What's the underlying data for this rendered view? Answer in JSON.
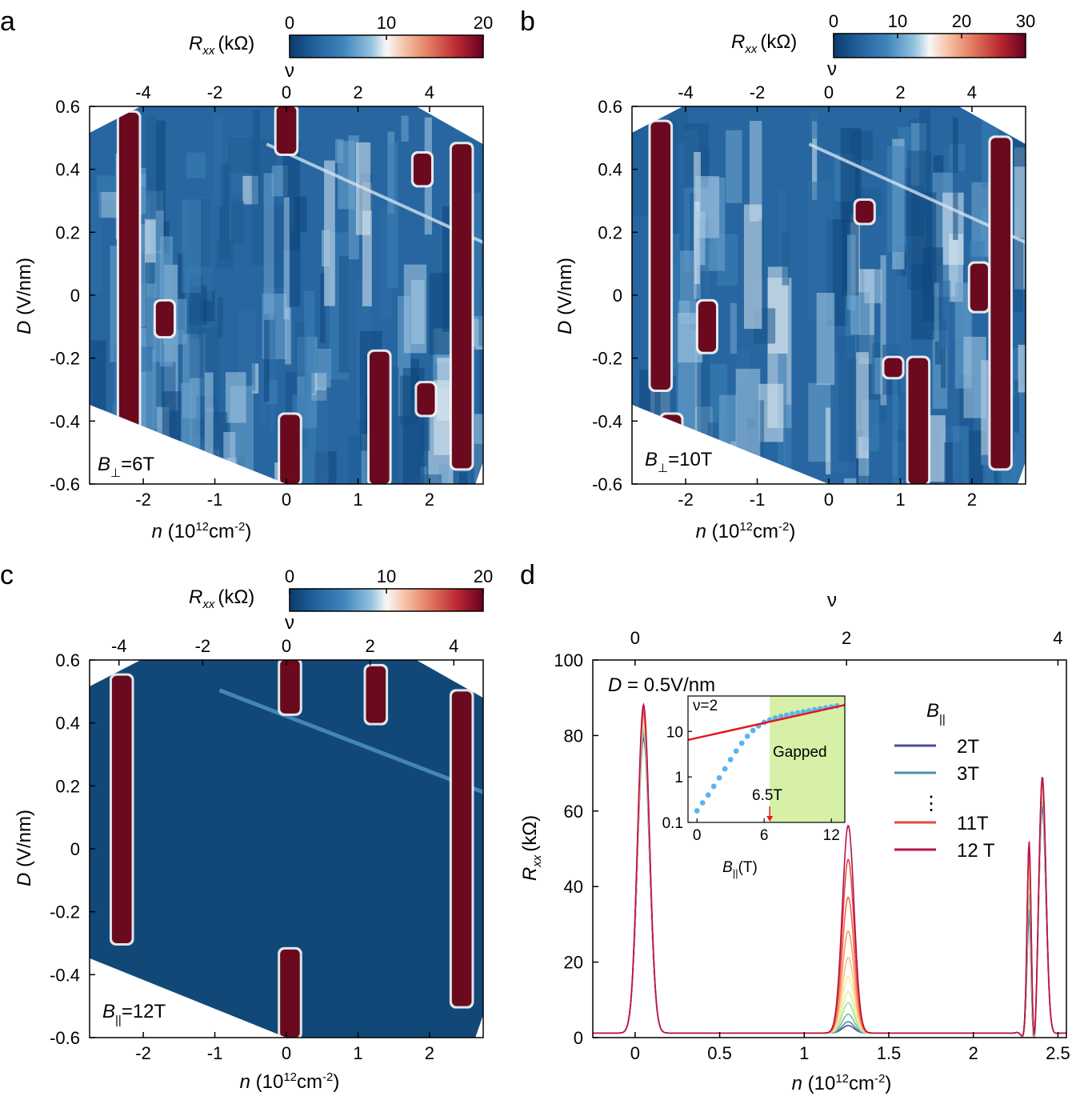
{
  "figure": {
    "panel_labels": [
      "a",
      "b",
      "c",
      "d"
    ]
  },
  "chart_data": [
    {
      "panel": "a",
      "type": "heatmap",
      "title": "",
      "xlabel": "n",
      "xlabel_unit": "(10",
      "xlabel_sup1": "12",
      "xlabel_unit2": "cm",
      "xlabel_sup2": "-2",
      "xlabel_end": ")",
      "ylabel": "D",
      "ylabel_unit": "(V/nm)",
      "xlim": [
        -2.75,
        2.75
      ],
      "ylim": [
        -0.6,
        0.6
      ],
      "xticks": [
        -2,
        -1,
        0,
        1,
        2
      ],
      "xtick_labels": [
        "-2",
        "-1",
        "0",
        "1",
        "2"
      ],
      "yticks": [
        0.6,
        0.4,
        0.2,
        0,
        -0.2,
        -0.4,
        -0.6
      ],
      "ytick_labels": [
        "0.6",
        "0.4",
        "0.2",
        "0",
        "-0.2",
        "-0.4",
        "-0.6"
      ],
      "top_axis_label": "ν",
      "top_ticks": [
        -4,
        -2,
        0,
        2,
        4
      ],
      "top_tick_labels": [
        "-4",
        "-2",
        "0",
        "2",
        "4"
      ],
      "nu_per_n": 2.0,
      "colorbar": {
        "label": "R",
        "label_sub": "xx",
        "unit": "(kΩ)",
        "min": 0,
        "max": 20,
        "ticks": [
          0,
          10,
          20
        ],
        "tick_labels": [
          "0",
          "10",
          "20"
        ]
      },
      "annotation": {
        "text_main": "B",
        "text_sub": "⊥",
        "text_value": "=6T"
      },
      "features": [
        {
          "kind": "resistive-stripe",
          "n": -2.2,
          "D_range": [
            -0.45,
            0.58
          ]
        },
        {
          "kind": "resistive-stripe",
          "n": 0.0,
          "D_range": [
            0.45,
            0.6
          ]
        },
        {
          "kind": "resistive-stripe",
          "n": 0.05,
          "D_range": [
            -0.6,
            -0.38
          ]
        },
        {
          "kind": "resistive-stripe",
          "n": 1.3,
          "D_range": [
            -0.6,
            -0.18
          ]
        },
        {
          "kind": "resistive-stripe",
          "n": 2.45,
          "D_range": [
            -0.55,
            0.48
          ]
        },
        {
          "kind": "resistive-spot",
          "n": -1.7,
          "D_range": [
            -0.13,
            -0.02
          ]
        },
        {
          "kind": "resistive-spot",
          "n": 1.9,
          "D_range": [
            0.35,
            0.45
          ]
        },
        {
          "kind": "resistive-spot",
          "n": 1.95,
          "D_range": [
            -0.38,
            -0.28
          ]
        }
      ]
    },
    {
      "panel": "b",
      "type": "heatmap",
      "title": "",
      "xlabel": "n",
      "xlabel_unit": "(10",
      "xlabel_sup1": "12",
      "xlabel_unit2": "cm",
      "xlabel_sup2": "-2",
      "xlabel_end": ")",
      "ylabel": "D",
      "ylabel_unit": "(V/nm)",
      "xlim": [
        -2.75,
        2.75
      ],
      "ylim": [
        -0.6,
        0.6
      ],
      "xticks": [
        -2,
        -1,
        0,
        1,
        2
      ],
      "xtick_labels": [
        "-2",
        "-1",
        "0",
        "1",
        "2"
      ],
      "yticks": [
        0.6,
        0.4,
        0.2,
        0,
        -0.2,
        -0.4,
        -0.6
      ],
      "ytick_labels": [
        "0.6",
        "0.4",
        "0.2",
        "0",
        "-0.2",
        "-0.4",
        "-0.6"
      ],
      "top_axis_label": "ν",
      "top_ticks": [
        -4,
        -2,
        0,
        2,
        4
      ],
      "top_tick_labels": [
        "-4",
        "-2",
        "0",
        "2",
        "4"
      ],
      "nu_per_n": 2.0,
      "colorbar": {
        "label": "R",
        "label_sub": "xx",
        "unit": "(kΩ)",
        "min": 0,
        "max": 30,
        "ticks": [
          0,
          10,
          20,
          30
        ],
        "tick_labels": [
          "0",
          "10",
          "20",
          "30"
        ]
      },
      "annotation": {
        "text_main": "B",
        "text_sub": "⊥",
        "text_value": "=10T"
      },
      "features": [
        {
          "kind": "resistive-stripe",
          "n": -2.35,
          "D_range": [
            -0.3,
            0.55
          ]
        },
        {
          "kind": "resistive-stripe",
          "n": -2.2,
          "D_range": [
            -0.55,
            -0.38
          ]
        },
        {
          "kind": "resistive-stripe",
          "n": 1.25,
          "D_range": [
            -0.6,
            -0.2
          ]
        },
        {
          "kind": "resistive-stripe",
          "n": 2.4,
          "D_range": [
            -0.55,
            0.5
          ]
        },
        {
          "kind": "resistive-spot",
          "n": -1.7,
          "D_range": [
            -0.18,
            -0.02
          ]
        },
        {
          "kind": "resistive-spot",
          "n": 0.5,
          "D_range": [
            0.23,
            0.3
          ]
        },
        {
          "kind": "resistive-spot",
          "n": 2.1,
          "D_range": [
            -0.05,
            0.1
          ]
        },
        {
          "kind": "resistive-spot",
          "n": 0.9,
          "D_range": [
            -0.26,
            -0.2
          ]
        }
      ]
    },
    {
      "panel": "c",
      "type": "heatmap",
      "title": "",
      "xlabel": "n",
      "xlabel_unit": "(10",
      "xlabel_sup1": "12",
      "xlabel_unit2": "cm",
      "xlabel_sup2": "-2",
      "xlabel_end": ")",
      "ylabel": "D",
      "ylabel_unit": "(V/nm)",
      "xlim": [
        -2.75,
        2.75
      ],
      "ylim": [
        -0.6,
        0.6
      ],
      "xticks": [
        -2,
        -1,
        0,
        1,
        2
      ],
      "xtick_labels": [
        "-2",
        "-1",
        "0",
        "1",
        "2"
      ],
      "yticks": [
        0.6,
        0.4,
        0.2,
        0,
        -0.2,
        -0.4,
        -0.6
      ],
      "ytick_labels": [
        "0.6",
        "0.4",
        "0.2",
        "0",
        "-0.2",
        "-0.4",
        "-0.6"
      ],
      "top_axis_label": "ν",
      "top_ticks": [
        -4,
        -2,
        0,
        2,
        4
      ],
      "top_tick_labels": [
        "-4",
        "-2",
        "0",
        "2",
        "4"
      ],
      "nu_per_n": 1.71,
      "colorbar": {
        "label": "R",
        "label_sub": "xx",
        "unit": "(kΩ)",
        "min": 0,
        "max": 20,
        "ticks": [
          0,
          10,
          20
        ],
        "tick_labels": [
          "0",
          "10",
          "20"
        ]
      },
      "annotation": {
        "text_main": "B",
        "text_sub": "||",
        "text_value": "=12T"
      },
      "features": [
        {
          "kind": "resistive-stripe",
          "n": -2.3,
          "D_range": [
            -0.3,
            0.55
          ]
        },
        {
          "kind": "resistive-stripe",
          "n": 0.05,
          "D_range": [
            0.43,
            0.6
          ]
        },
        {
          "kind": "resistive-stripe",
          "n": 0.05,
          "D_range": [
            -0.6,
            -0.32
          ]
        },
        {
          "kind": "resistive-stripe",
          "n": 1.25,
          "D_range": [
            0.4,
            0.58
          ]
        },
        {
          "kind": "resistive-stripe",
          "n": 2.45,
          "D_range": [
            -0.5,
            0.5
          ]
        }
      ]
    },
    {
      "panel": "d",
      "type": "line",
      "title": "",
      "xlabel": "n",
      "xlabel_unit": "(10",
      "xlabel_sup1": "12",
      "xlabel_unit2": "cm",
      "xlabel_sup2": "-2",
      "xlabel_end": ")",
      "ylabel": "R",
      "ylabel_sub": "xx",
      "ylabel_unit": "(kΩ)",
      "xlim": [
        -0.25,
        2.55
      ],
      "ylim": [
        0,
        100
      ],
      "xticks": [
        0,
        0.5,
        1,
        1.5,
        2,
        2.5
      ],
      "xtick_labels": [
        "0",
        "0.5",
        "1",
        "1.5",
        "2",
        "2.5"
      ],
      "yticks": [
        0,
        20,
        40,
        60,
        80,
        100
      ],
      "ytick_labels": [
        "0",
        "20",
        "40",
        "60",
        "80",
        "100"
      ],
      "top_axis_label": "ν",
      "top_ticks": [
        0,
        2,
        4
      ],
      "top_tick_labels": [
        "0",
        "2",
        "4"
      ],
      "nu_per_n": 1.6,
      "annotation": {
        "text_main": "D",
        "text_value": " = 0.5V/nm"
      },
      "legend": {
        "title": "B",
        "title_sub": "||",
        "ellipsis": "⋮"
      },
      "peaks": {
        "centers": [
          0.05,
          1.26,
          2.33,
          2.41
        ],
        "widths": [
          0.035,
          0.035,
          0.012,
          0.02
        ]
      },
      "series": [
        {
          "name": "2T",
          "B": 2,
          "color": "#4a4aa8",
          "in_legend": true,
          "peak_values": [
            78,
            2,
            28,
            60
          ]
        },
        {
          "name": "3T",
          "B": 3,
          "color": "#4a90a8",
          "in_legend": true,
          "peak_values": [
            79,
            3,
            30,
            62
          ]
        },
        {
          "name": "4T",
          "B": 4,
          "color": "#6cc0a0",
          "in_legend": false,
          "peak_values": [
            80,
            5,
            34,
            63
          ]
        },
        {
          "name": "5T",
          "B": 5,
          "color": "#a8dca0",
          "in_legend": false,
          "peak_values": [
            81,
            8,
            38,
            64
          ]
        },
        {
          "name": "6T",
          "B": 6,
          "color": "#dff0a0",
          "in_legend": false,
          "peak_values": [
            82,
            11,
            40,
            65
          ]
        },
        {
          "name": "7T",
          "B": 7,
          "color": "#fbe89a",
          "in_legend": false,
          "peak_values": [
            82,
            15,
            42,
            66
          ]
        },
        {
          "name": "8T",
          "B": 8,
          "color": "#fdc07a",
          "in_legend": false,
          "peak_values": [
            83,
            20,
            44,
            66
          ]
        },
        {
          "name": "9T",
          "B": 9,
          "color": "#f89866",
          "in_legend": false,
          "peak_values": [
            84,
            27,
            45,
            67
          ]
        },
        {
          "name": "10T",
          "B": 10,
          "color": "#ee6a50",
          "in_legend": false,
          "peak_values": [
            85,
            36,
            46,
            67
          ]
        },
        {
          "name": "11T",
          "B": 11,
          "color": "#e24a3a",
          "in_legend": true,
          "peak_values": [
            86,
            46,
            47,
            68
          ]
        },
        {
          "name": "12 T",
          "B": 12,
          "color": "#b8124a",
          "in_legend": true,
          "peak_values": [
            87,
            55,
            48,
            68
          ]
        }
      ],
      "inset": {
        "type": "scatter",
        "xlabel": "B",
        "xlabel_sub": "||",
        "xlabel_unit": "(T)",
        "label": "ν=2",
        "xlim": [
          -0.8,
          13.2
        ],
        "ylim_log": [
          0.1,
          60
        ],
        "xticks": [
          0,
          6,
          12
        ],
        "xtick_labels": [
          "0",
          "6",
          "12"
        ],
        "yticks": [
          0.1,
          1,
          10
        ],
        "ytick_labels": [
          "0.1",
          "1",
          "10"
        ],
        "shaded_region": {
          "x_from": 6.5,
          "x_to": 13.2,
          "color": "#d6f0a8",
          "label": "Gapped"
        },
        "arrow": {
          "x": 6.5,
          "label": "6.5T"
        },
        "fit_line": {
          "x": [
            -0.8,
            13.2
          ],
          "y": [
            6.5,
            38
          ],
          "color": "#e41a1c"
        },
        "points": {
          "color": "#5ab4f0",
          "x": [
            0,
            0.5,
            1,
            1.5,
            2,
            2.5,
            3,
            3.5,
            4,
            4.5,
            5,
            5.5,
            6,
            6.5,
            7,
            7.5,
            8,
            8.5,
            9,
            9.5,
            10,
            10.5,
            11,
            11.5,
            12,
            12.5
          ],
          "y": [
            0.18,
            0.27,
            0.4,
            0.62,
            0.95,
            1.5,
            2.4,
            3.7,
            5.5,
            7.8,
            10.5,
            13.2,
            15.8,
            18,
            19.8,
            21.3,
            22.8,
            24.2,
            25.6,
            27,
            28.4,
            29.9,
            31.4,
            33,
            34.6,
            36.3
          ]
        }
      }
    }
  ]
}
